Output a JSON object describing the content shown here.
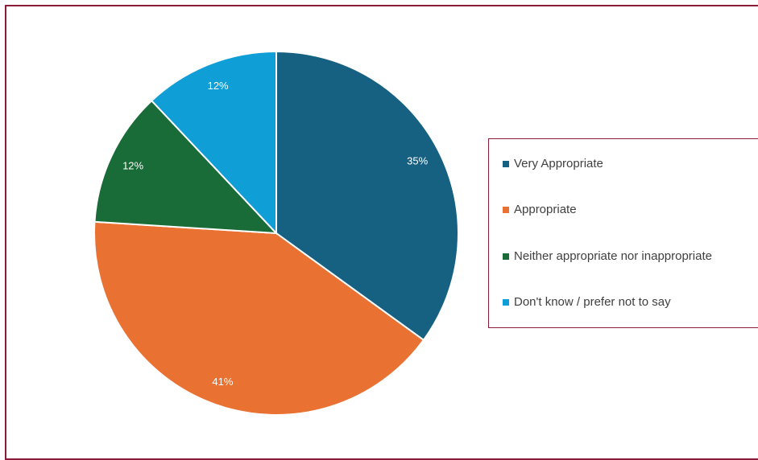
{
  "chart_data": {
    "type": "pie",
    "title": "",
    "legend_position": "right",
    "slices": [
      {
        "label": "Very Appropriate",
        "value": 35,
        "value_label": "35%",
        "color": "#166082"
      },
      {
        "label": "Appropriate",
        "value": 41,
        "value_label": "41%",
        "color": "#e97132"
      },
      {
        "label": "Neither appropriate nor inappropriate",
        "value": 12,
        "value_label": "12%",
        "color": "#196b37"
      },
      {
        "label": "Don't know / prefer not to say",
        "value": 12,
        "value_label": "12%",
        "color": "#0f9ed5"
      }
    ]
  }
}
